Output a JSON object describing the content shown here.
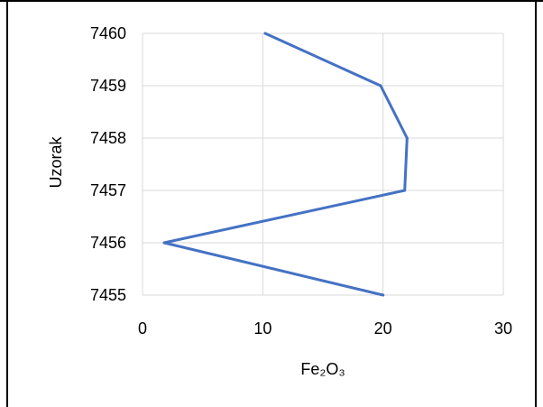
{
  "chart_data": {
    "type": "line",
    "title": "",
    "xlabel": "Fe₂O₃",
    "ylabel": "Uzorak",
    "xlim": [
      0,
      30
    ],
    "ylim": [
      7455,
      7460
    ],
    "x_ticks": [
      "0",
      "10",
      "20",
      "30"
    ],
    "y_ticks": [
      "7455",
      "7456",
      "7457",
      "7458",
      "7459",
      "7460"
    ],
    "grid": true,
    "legend": "none",
    "series": [
      {
        "color": "#4472c4",
        "points": [
          {
            "x": 20.0,
            "y": 7455
          },
          {
            "x": 1.8,
            "y": 7456
          },
          {
            "x": 21.8,
            "y": 7457
          },
          {
            "x": 22.0,
            "y": 7458
          },
          {
            "x": 19.8,
            "y": 7459
          },
          {
            "x": 10.2,
            "y": 7460
          }
        ]
      }
    ],
    "colors": {
      "line": "#4472c4",
      "grid": "#d9d9d9",
      "frame": "#000000"
    }
  }
}
